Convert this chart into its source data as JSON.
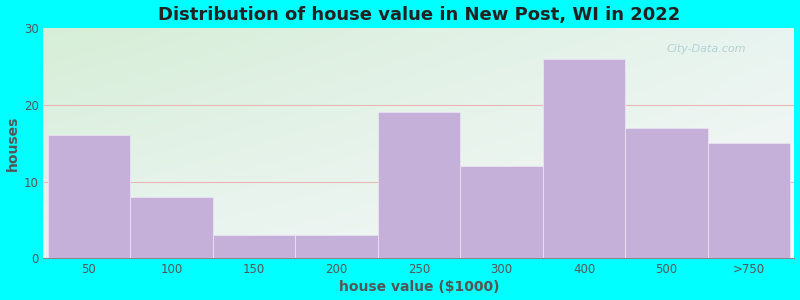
{
  "title": "Distribution of house value in New Post, WI in 2022",
  "xlabel": "house value ($1000)",
  "ylabel": "houses",
  "bar_labels": [
    "50",
    "100",
    "150",
    "200",
    "250",
    "300",
    "400",
    "500",
    ">750"
  ],
  "bar_heights": [
    16,
    8,
    3,
    3,
    19,
    12,
    26,
    17,
    15
  ],
  "bar_lefts": [
    0,
    1,
    2,
    3,
    4,
    5,
    6,
    7,
    8
  ],
  "bar_widths": [
    1,
    1,
    1,
    1,
    1,
    1,
    1,
    1,
    1
  ],
  "bar_color": "#c4b0d8",
  "bar_edgecolor": "#e8e0f0",
  "ylim": [
    0,
    30
  ],
  "yticks": [
    0,
    10,
    20,
    30
  ],
  "xlim": [
    -0.05,
    9.05
  ],
  "background_outer": "#00ffff",
  "background_top_left": "#d6eed6",
  "background_bottom_right": "#f0f0f0",
  "grid_color": "#e8b8b8",
  "title_fontsize": 13,
  "axis_label_fontsize": 10,
  "tick_fontsize": 8.5,
  "watermark_text": "City-Data.com",
  "figsize": [
    8.0,
    3.0
  ],
  "dpi": 100
}
